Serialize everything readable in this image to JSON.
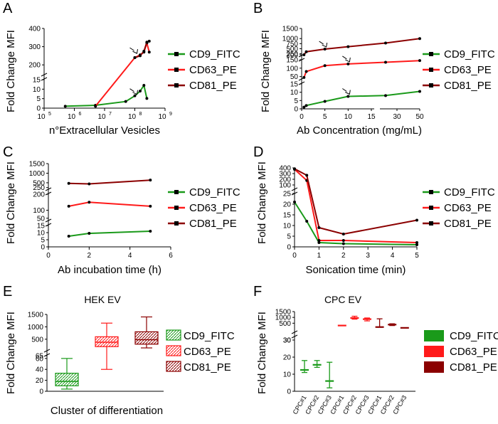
{
  "colors": {
    "cd9": "#1a9a1a",
    "cd63": "#ff1a1a",
    "cd81": "#8b0000",
    "axis": "#000000"
  },
  "legend": [
    "CD9_FITC",
    "CD63_PE",
    "CD81_PE"
  ],
  "chart_data": [
    {
      "panel": "A",
      "type": "line",
      "scale": "log",
      "xlabel": "n°Extracellular Vesicles",
      "ylabel": "Fold Change MFI",
      "xlim": [
        100000,
        1000000000
      ],
      "xticks": [
        {
          "v": 100000,
          "t": "10",
          "e": "5"
        },
        {
          "v": 1000000,
          "t": "10",
          "e": "6"
        },
        {
          "v": 10000000,
          "t": "10",
          "e": "7"
        },
        {
          "v": 100000000,
          "t": "10",
          "e": "8"
        },
        {
          "v": 1000000000,
          "t": "10",
          "e": "9"
        }
      ],
      "segments": [
        {
          "range": [
            0,
            15
          ],
          "ticks": [
            "0",
            "5",
            "10",
            "15"
          ]
        },
        {
          "range": [
            150,
            400
          ],
          "ticks": [
            "200",
            "300",
            "400"
          ]
        }
      ],
      "series": [
        {
          "name": "CD9_FITC",
          "x": [
            500000,
            5000000,
            50000000,
            100000000,
            150000000,
            200000000,
            250000000
          ],
          "y": [
            1,
            1.5,
            3.5,
            6.5,
            9,
            12,
            15.5
          ]
        },
        {
          "name": "CD63_PE",
          "x": [
            5000000,
            100000000,
            150000000,
            200000000,
            250000000,
            300000000
          ],
          "y": [
            1,
            240,
            255,
            270,
            320,
            270
          ]
        },
        {
          "name": "CD81_PE",
          "x": [
            100000000,
            150000000,
            200000000,
            250000000,
            300000000
          ],
          "y": [
            240,
            250,
            275,
            325,
            330
          ]
        }
      ],
      "arrows": [
        {
          "x": 100000000,
          "y": 6.5
        },
        {
          "x": 100000000,
          "y": 255
        }
      ]
    },
    {
      "panel": "B",
      "type": "line",
      "xlabel": "Ab Concentration (mg/mL)",
      "ylabel": "Fold Change MFI",
      "xticks": [
        "0",
        "5",
        "10",
        "15",
        "30",
        "50"
      ],
      "segments": [
        {
          "range": [
            0,
            15
          ],
          "ticks": [
            "0",
            "5",
            "10",
            "15"
          ]
        },
        {
          "range": [
            40,
            150
          ],
          "ticks": [
            "50",
            "100",
            "150"
          ]
        },
        {
          "range": [
            200,
            1500
          ],
          "ticks": [
            "200",
            "250",
            "500",
            "750",
            "1000",
            "1500"
          ]
        }
      ],
      "series": [
        {
          "name": "CD9_FITC",
          "x": [
            0.5,
            1,
            5,
            10,
            20,
            50
          ],
          "y": [
            1,
            2,
            4.5,
            7.5,
            8,
            10.5
          ]
        },
        {
          "name": "CD63_PE",
          "x": [
            0.5,
            1,
            5,
            10,
            20,
            50
          ],
          "y": [
            45,
            80,
            115,
            125,
            135,
            145
          ]
        },
        {
          "name": "CD81_PE",
          "x": [
            0.5,
            1,
            5,
            10,
            20,
            50
          ],
          "y": [
            200,
            350,
            480,
            600,
            780,
            1000
          ]
        }
      ],
      "arrows": [
        {
          "x": 5,
          "y": 480
        },
        {
          "x": 10,
          "y": 125
        },
        {
          "x": 10,
          "y": 7.5
        }
      ]
    },
    {
      "panel": "C",
      "type": "line",
      "xlabel": "Ab incubation time (h)",
      "ylabel": "Fold Change MFI",
      "xlim": [
        0,
        6
      ],
      "xticks": [
        "0",
        "2",
        "4",
        "6"
      ],
      "segments": [
        {
          "range": [
            0,
            15
          ],
          "ticks": [
            "0",
            "5",
            "10",
            "15"
          ]
        },
        {
          "range": [
            40,
            200
          ],
          "ticks": [
            "50",
            "100",
            "200"
          ]
        },
        {
          "range": [
            200,
            1500
          ],
          "ticks": [
            "250",
            "500",
            "1000",
            "1500"
          ]
        }
      ],
      "series": [
        {
          "name": "CD9_FITC",
          "x": [
            1,
            2,
            5
          ],
          "y": [
            7.5,
            9.5,
            11
          ]
        },
        {
          "name": "CD63_PE",
          "x": [
            1,
            2,
            5
          ],
          "y": [
            125,
            150,
            125
          ]
        },
        {
          "name": "CD81_PE",
          "x": [
            1,
            2,
            5
          ],
          "y": [
            470,
            440,
            640
          ]
        }
      ]
    },
    {
      "panel": "D",
      "type": "line",
      "xlabel": "Sonication time (min)",
      "ylabel": "Fold Change MFI",
      "xlim": [
        0,
        5
      ],
      "xticks": [
        "0",
        "1",
        "2",
        "3",
        "4",
        "5"
      ],
      "segments": [
        {
          "range": [
            0,
            25
          ],
          "ticks": [
            "0",
            "5",
            "10",
            "15",
            "20",
            "25"
          ]
        },
        {
          "range": [
            25,
            400
          ],
          "ticks": [
            "100",
            "200",
            "300",
            "400"
          ]
        }
      ],
      "series": [
        {
          "name": "CD9_FITC",
          "x": [
            0,
            0.5,
            1,
            2,
            5
          ],
          "y": [
            21,
            12,
            2,
            1.5,
            1
          ]
        },
        {
          "name": "CD63_PE",
          "x": [
            0,
            0.5,
            1,
            2,
            5
          ],
          "y": [
            375,
            180,
            3,
            3,
            2
          ]
        },
        {
          "name": "CD81_PE",
          "x": [
            0,
            0.5,
            1,
            2,
            5
          ],
          "y": [
            385,
            270,
            9,
            6,
            12.5
          ]
        }
      ]
    },
    {
      "panel": "E",
      "type": "box",
      "title": "HEK EV",
      "xlabel": "Cluster of differentiation",
      "ylabel": "Fold Change MFI",
      "segments": [
        {
          "range": [
            0,
            65
          ],
          "ticks": [
            "0",
            "20",
            "40",
            "60"
          ]
        },
        {
          "range": [
            65,
            1500
          ],
          "ticks": [
            "65",
            "500",
            "1000",
            "1500"
          ]
        }
      ],
      "boxes": [
        {
          "name": "CD9_FITC",
          "min": 4,
          "q1": 10,
          "median": 18,
          "q3": 33,
          "max": 60
        },
        {
          "name": "CD63_PE",
          "min": 40,
          "q1": 200,
          "median": 380,
          "q3": 600,
          "max": 1150
        },
        {
          "name": "CD81_PE",
          "min": 150,
          "q1": 300,
          "median": 480,
          "q3": 800,
          "max": 1400
        }
      ]
    },
    {
      "panel": "F",
      "type": "scatter",
      "title": "CPC EV",
      "ylabel": "Fold Change MFI",
      "categories": [
        "CPC#1",
        "CPC#2",
        "CPC#3",
        "CPC#1",
        "CPC#2",
        "CPC#3",
        "CPC#1",
        "CPC#2",
        "CPC#3"
      ],
      "segments": [
        {
          "range": [
            0,
            30
          ],
          "ticks": [
            "0",
            "10",
            "20",
            "30"
          ]
        },
        {
          "range": [
            30,
            1500
          ],
          "ticks": [
            "30",
            "500",
            "1000",
            "1500"
          ]
        }
      ],
      "points": [
        {
          "series": "CD9_FITC",
          "mean": 12.5,
          "low": 11,
          "high": 18
        },
        {
          "series": "CD9_FITC",
          "mean": 15.5,
          "low": 14,
          "high": 18
        },
        {
          "series": "CD9_FITC",
          "mean": 6,
          "low": 2,
          "high": 17
        },
        {
          "series": "CD63_PE",
          "mean": 300,
          "low": 290,
          "high": 310
        },
        {
          "series": "CD63_PE",
          "mean": 950,
          "low": 850,
          "high": 1100
        },
        {
          "series": "CD63_PE",
          "mean": 850,
          "low": 700,
          "high": 950
        },
        {
          "series": "CD81_PE",
          "mean": 170,
          "low": 150,
          "high": 880
        },
        {
          "series": "CD81_PE",
          "mean": 380,
          "low": 300,
          "high": 450
        },
        {
          "series": "CD81_PE",
          "mean": 100,
          "low": 95,
          "high": 110
        }
      ]
    }
  ]
}
